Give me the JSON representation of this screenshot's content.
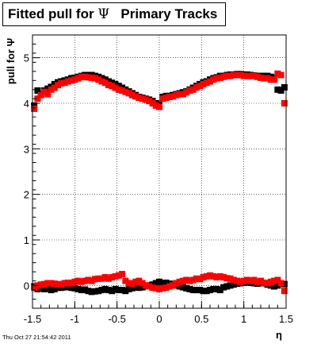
{
  "title": {
    "prefix": "Fitted pull for ",
    "symbol": "Ψ",
    "suffix": "   Primary Tracks"
  },
  "footer_text": "Thu Oct 27 21:54:42 2011",
  "chart_data": {
    "type": "scatter",
    "xlabel": "η",
    "ylabel": "pull for Ψ",
    "xlim": [
      -1.5,
      1.5
    ],
    "ylim": [
      -0.5,
      5.5
    ],
    "xticks": [
      -1.5,
      -1,
      -0.5,
      0,
      0.5,
      1,
      1.5
    ],
    "xtick_labels": [
      "-1.5",
      "-1",
      "-0.5",
      "0",
      "0.5",
      "1",
      "1.5"
    ],
    "yticks": [
      0,
      1,
      2,
      3,
      4,
      5
    ],
    "ytick_labels": [
      "0",
      "1",
      "2",
      "3",
      "4",
      "5"
    ],
    "grid": true,
    "colors": {
      "black_series": "#000000",
      "red_series": "#ff0000"
    },
    "series": [
      {
        "color": "#000000",
        "marker": "square",
        "x": [
          -1.48,
          -1.44,
          -1.4,
          -1.36,
          -1.32,
          -1.28,
          -1.24,
          -1.2,
          -1.16,
          -1.12,
          -1.08,
          -1.04,
          -1.0,
          -0.96,
          -0.92,
          -0.88,
          -0.84,
          -0.8,
          -0.76,
          -0.72,
          -0.68,
          -0.64,
          -0.6,
          -0.56,
          -0.52,
          -0.48,
          -0.44,
          -0.4,
          -0.36,
          -0.32,
          -0.28,
          -0.24,
          -0.2,
          -0.16,
          -0.12,
          -0.08,
          -0.04,
          0.0,
          0.04,
          0.08,
          0.12,
          0.16,
          0.2,
          0.24,
          0.28,
          0.32,
          0.36,
          0.4,
          0.44,
          0.48,
          0.52,
          0.56,
          0.6,
          0.64,
          0.68,
          0.72,
          0.76,
          0.8,
          0.84,
          0.88,
          0.92,
          0.96,
          1.0,
          1.04,
          1.08,
          1.12,
          1.16,
          1.2,
          1.24,
          1.28,
          1.32,
          1.36,
          1.4,
          1.44,
          1.48
        ],
        "y": [
          3.95,
          4.28,
          4.2,
          4.28,
          4.32,
          4.36,
          4.42,
          4.46,
          4.48,
          4.5,
          4.52,
          4.55,
          4.56,
          4.58,
          4.6,
          4.62,
          4.62,
          4.62,
          4.6,
          4.58,
          4.55,
          4.52,
          4.48,
          4.45,
          4.42,
          4.38,
          4.34,
          4.3,
          4.26,
          4.22,
          4.18,
          4.14,
          4.12,
          4.1,
          4.08,
          4.05,
          4.0,
          3.98,
          4.14,
          4.16,
          4.16,
          4.18,
          4.2,
          4.22,
          4.24,
          4.26,
          4.3,
          4.34,
          4.38,
          4.42,
          4.46,
          4.48,
          4.52,
          4.55,
          4.57,
          4.6,
          4.6,
          4.62,
          4.63,
          4.63,
          4.64,
          4.64,
          4.63,
          4.63,
          4.62,
          4.61,
          4.6,
          4.6,
          4.6,
          4.6,
          4.58,
          4.56,
          4.3,
          4.28,
          4.35
        ]
      },
      {
        "color": "#ff0000",
        "marker": "square",
        "x": [
          -1.48,
          -1.44,
          -1.4,
          -1.36,
          -1.32,
          -1.28,
          -1.24,
          -1.2,
          -1.16,
          -1.12,
          -1.08,
          -1.04,
          -1.0,
          -0.96,
          -0.92,
          -0.88,
          -0.84,
          -0.8,
          -0.76,
          -0.72,
          -0.68,
          -0.64,
          -0.6,
          -0.56,
          -0.52,
          -0.48,
          -0.44,
          -0.4,
          -0.36,
          -0.32,
          -0.28,
          -0.24,
          -0.2,
          -0.16,
          -0.12,
          -0.08,
          -0.04,
          0.0,
          0.04,
          0.08,
          0.12,
          0.16,
          0.2,
          0.24,
          0.28,
          0.32,
          0.36,
          0.4,
          0.44,
          0.48,
          0.52,
          0.56,
          0.6,
          0.64,
          0.68,
          0.72,
          0.76,
          0.8,
          0.84,
          0.88,
          0.92,
          0.96,
          1.0,
          1.04,
          1.08,
          1.12,
          1.16,
          1.2,
          1.24,
          1.28,
          1.32,
          1.36,
          1.4,
          1.44,
          1.48
        ],
        "y": [
          3.88,
          4.1,
          4.18,
          4.25,
          4.2,
          4.3,
          4.34,
          4.4,
          4.44,
          4.45,
          4.48,
          4.5,
          4.52,
          4.55,
          4.58,
          4.58,
          4.57,
          4.56,
          4.55,
          4.52,
          4.48,
          4.45,
          4.4,
          4.38,
          4.34,
          4.3,
          4.28,
          4.25,
          4.22,
          4.18,
          4.15,
          4.12,
          4.1,
          4.08,
          4.05,
          4.0,
          3.95,
          3.92,
          4.1,
          4.12,
          4.14,
          4.15,
          4.18,
          4.2,
          4.2,
          4.24,
          4.28,
          4.3,
          4.35,
          4.38,
          4.42,
          4.45,
          4.48,
          4.52,
          4.55,
          4.56,
          4.58,
          4.6,
          4.6,
          4.62,
          4.62,
          4.62,
          4.6,
          4.6,
          4.6,
          4.6,
          4.58,
          4.56,
          4.55,
          4.55,
          4.52,
          4.52,
          4.65,
          4.62,
          4.0
        ]
      },
      {
        "color": "#000000",
        "marker": "square",
        "x": [
          -1.48,
          -1.44,
          -1.4,
          -1.36,
          -1.32,
          -1.28,
          -1.24,
          -1.2,
          -1.16,
          -1.12,
          -1.08,
          -1.04,
          -1.0,
          -0.96,
          -0.92,
          -0.88,
          -0.84,
          -0.8,
          -0.76,
          -0.72,
          -0.68,
          -0.64,
          -0.6,
          -0.56,
          -0.52,
          -0.48,
          -0.44,
          -0.4,
          -0.36,
          -0.32,
          -0.28,
          -0.24,
          -0.2,
          -0.16,
          -0.12,
          -0.08,
          -0.04,
          0.0,
          0.04,
          0.08,
          0.12,
          0.16,
          0.2,
          0.24,
          0.28,
          0.32,
          0.36,
          0.4,
          0.44,
          0.48,
          0.52,
          0.56,
          0.6,
          0.64,
          0.68,
          0.72,
          0.76,
          0.8,
          0.84,
          0.88,
          0.92,
          0.96,
          1.0,
          1.04,
          1.08,
          1.12,
          1.16,
          1.2,
          1.24,
          1.28,
          1.32,
          1.36,
          1.4,
          1.44,
          1.48
        ],
        "y": [
          -0.02,
          -0.08,
          -0.05,
          -0.08,
          -0.06,
          -0.1,
          -0.08,
          -0.05,
          -0.05,
          -0.04,
          -0.03,
          -0.05,
          -0.06,
          -0.08,
          -0.1,
          -0.09,
          -0.12,
          -0.14,
          -0.13,
          -0.12,
          -0.1,
          -0.08,
          -0.1,
          -0.12,
          -0.08,
          -0.1,
          -0.1,
          -0.12,
          -0.08,
          -0.06,
          -0.04,
          -0.05,
          -0.04,
          -0.02,
          0.0,
          0.02,
          0.05,
          0.08,
          0.05,
          0.06,
          0.04,
          0.02,
          0.0,
          -0.02,
          -0.04,
          -0.06,
          -0.08,
          -0.1,
          -0.1,
          -0.1,
          -0.12,
          -0.12,
          -0.1,
          -0.08,
          -0.08,
          -0.1,
          -0.04,
          -0.02,
          0.0,
          0.02,
          0.04,
          0.05,
          0.06,
          0.08,
          0.06,
          0.05,
          0.04,
          0.05,
          0.05,
          0.02,
          0.0,
          -0.02,
          0.0,
          0.05,
          0.03
        ]
      },
      {
        "color": "#ff0000",
        "marker": "square",
        "x": [
          -1.48,
          -1.44,
          -1.4,
          -1.36,
          -1.32,
          -1.28,
          -1.24,
          -1.2,
          -1.16,
          -1.12,
          -1.08,
          -1.04,
          -1.0,
          -0.96,
          -0.92,
          -0.88,
          -0.84,
          -0.8,
          -0.76,
          -0.72,
          -0.68,
          -0.64,
          -0.6,
          -0.56,
          -0.52,
          -0.48,
          -0.44,
          -0.4,
          -0.36,
          -0.32,
          -0.28,
          -0.24,
          -0.2,
          -0.16,
          -0.12,
          -0.08,
          -0.04,
          0.0,
          0.04,
          0.08,
          0.12,
          0.16,
          0.2,
          0.24,
          0.28,
          0.32,
          0.36,
          0.4,
          0.44,
          0.48,
          0.52,
          0.56,
          0.6,
          0.64,
          0.68,
          0.72,
          0.76,
          0.8,
          0.84,
          0.88,
          0.92,
          0.96,
          1.0,
          1.04,
          1.08,
          1.12,
          1.16,
          1.2,
          1.24,
          1.28,
          1.32,
          1.36,
          1.4,
          1.44,
          1.48
        ],
        "y": [
          -0.05,
          0.0,
          0.02,
          0.03,
          0.05,
          0.05,
          0.04,
          0.03,
          0.02,
          0.05,
          0.06,
          0.05,
          0.08,
          0.1,
          0.08,
          0.1,
          0.12,
          0.1,
          0.14,
          0.15,
          0.15,
          0.18,
          0.15,
          0.18,
          0.2,
          0.22,
          0.25,
          0.1,
          0.05,
          0.04,
          0.08,
          0.1,
          0.05,
          0.0,
          -0.02,
          -0.05,
          -0.06,
          -0.08,
          -0.06,
          -0.05,
          -0.02,
          0.0,
          0.05,
          0.08,
          0.1,
          0.12,
          0.1,
          0.12,
          0.15,
          0.14,
          0.18,
          0.2,
          0.22,
          0.2,
          0.18,
          0.2,
          0.18,
          0.16,
          0.15,
          0.12,
          0.1,
          0.08,
          0.1,
          0.12,
          0.1,
          0.12,
          0.08,
          0.1,
          0.06,
          0.05,
          0.08,
          0.1,
          0.12,
          0.05,
          -0.12
        ]
      }
    ]
  }
}
